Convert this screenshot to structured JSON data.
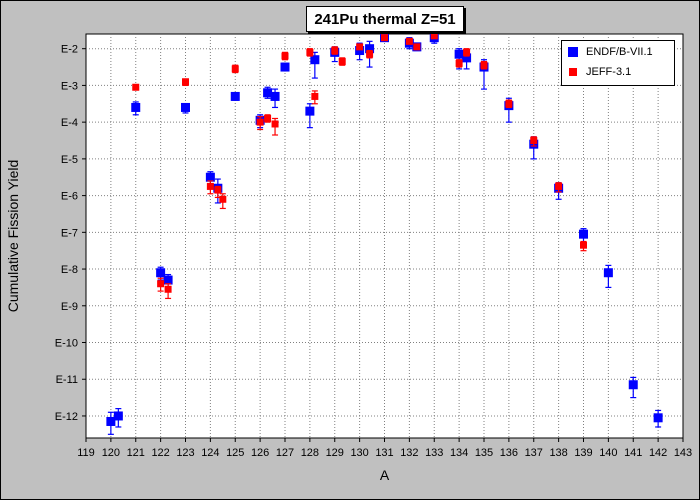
{
  "chart_data": {
    "type": "scatter",
    "title": "241Pu thermal Z=51",
    "xlabel": "A",
    "ylabel": "Cumulative Fission Yield",
    "xlim": [
      119,
      143
    ],
    "ylog": true,
    "ylim_exp": [
      -12.6,
      -1.6
    ],
    "x_ticks": [
      119,
      120,
      121,
      122,
      123,
      124,
      125,
      126,
      127,
      128,
      129,
      130,
      131,
      132,
      133,
      134,
      135,
      136,
      137,
      138,
      139,
      140,
      141,
      142,
      143
    ],
    "y_tick_labels": [
      "E-2",
      "E-3",
      "E-4",
      "E-5",
      "E-6",
      "E-7",
      "E-8",
      "E-9",
      "E-10",
      "E-11",
      "E-12"
    ],
    "y_tick_exps": [
      -2,
      -3,
      -4,
      -5,
      -6,
      -7,
      -8,
      -9,
      -10,
      -11,
      -12
    ],
    "grid": true,
    "legend_position": "top-right",
    "series": [
      {
        "name": "ENDF/B-VII.1",
        "color": "#0000ff",
        "marker": "square-large",
        "points": [
          {
            "x": 120.0,
            "e": -12.15,
            "lo": -12.5,
            "hi": -11.9
          },
          {
            "x": 120.3,
            "e": -12.0,
            "lo": -12.3,
            "hi": -11.8
          },
          {
            "x": 121.0,
            "e": -3.6,
            "lo": -3.8,
            "hi": -3.45
          },
          {
            "x": 122.0,
            "e": -8.1,
            "lo": -8.3,
            "hi": -7.95
          },
          {
            "x": 122.3,
            "e": -8.3,
            "lo": -8.6,
            "hi": -8.15
          },
          {
            "x": 123.0,
            "e": -3.6,
            "lo": -3.75,
            "hi": -3.5
          },
          {
            "x": 124.0,
            "e": -5.5,
            "lo": -5.75,
            "hi": -5.35
          },
          {
            "x": 124.3,
            "e": -5.8,
            "lo": -6.2,
            "hi": -5.55
          },
          {
            "x": 125.0,
            "e": -3.3,
            "lo": -3.4,
            "hi": -3.2
          },
          {
            "x": 126.0,
            "e": -3.95,
            "lo": -4.15,
            "hi": -3.8
          },
          {
            "x": 126.3,
            "e": -3.2,
            "lo": -3.35,
            "hi": -3.05
          },
          {
            "x": 126.6,
            "e": -3.3,
            "lo": -3.6,
            "hi": -3.1
          },
          {
            "x": 127.0,
            "e": -2.5,
            "lo": -2.6,
            "hi": -2.4
          },
          {
            "x": 128.0,
            "e": -3.7,
            "lo": -4.15,
            "hi": -3.5
          },
          {
            "x": 128.2,
            "e": -2.3,
            "lo": -2.8,
            "hi": -2.1
          },
          {
            "x": 129.0,
            "e": -2.1,
            "lo": -2.35,
            "hi": -1.95
          },
          {
            "x": 130.0,
            "e": -2.05,
            "lo": -2.3,
            "hi": -1.85
          },
          {
            "x": 130.4,
            "e": -2.0,
            "lo": -2.5,
            "hi": -1.8
          },
          {
            "x": 131.0,
            "e": -1.7,
            "lo": -1.8,
            "hi": -1.6
          },
          {
            "x": 132.0,
            "e": -1.85,
            "lo": -2.0,
            "hi": -1.7
          },
          {
            "x": 132.3,
            "e": -1.95,
            "lo": -2.05,
            "hi": -1.85
          },
          {
            "x": 133.0,
            "e": -1.7,
            "lo": -1.85,
            "hi": -1.6
          },
          {
            "x": 134.0,
            "e": -2.15,
            "lo": -2.55,
            "hi": -2.0
          },
          {
            "x": 134.3,
            "e": -2.25,
            "lo": -2.55,
            "hi": -2.05
          },
          {
            "x": 135.0,
            "e": -2.5,
            "lo": -3.1,
            "hi": -2.3
          },
          {
            "x": 136.0,
            "e": -3.55,
            "lo": -4.0,
            "hi": -3.35
          },
          {
            "x": 137.0,
            "e": -4.6,
            "lo": -5.0,
            "hi": -4.4
          },
          {
            "x": 138.0,
            "e": -5.8,
            "lo": -6.1,
            "hi": -5.65
          },
          {
            "x": 139.0,
            "e": -7.05,
            "lo": -7.4,
            "hi": -6.9
          },
          {
            "x": 140.0,
            "e": -8.1,
            "lo": -8.5,
            "hi": -7.9
          },
          {
            "x": 141.0,
            "e": -11.15,
            "lo": -11.5,
            "hi": -10.95
          },
          {
            "x": 142.0,
            "e": -12.05,
            "lo": -12.3,
            "hi": -11.85
          }
        ]
      },
      {
        "name": "JEFF-3.1",
        "color": "#ff0000",
        "marker": "square-small",
        "points": [
          {
            "x": 121.0,
            "e": -3.05,
            "lo": -3.1,
            "hi": -3.0
          },
          {
            "x": 122.0,
            "e": -8.4,
            "lo": -8.6,
            "hi": -8.25
          },
          {
            "x": 122.3,
            "e": -8.55,
            "lo": -8.8,
            "hi": -8.4
          },
          {
            "x": 123.0,
            "e": -2.9,
            "lo": -3.0,
            "hi": -2.85
          },
          {
            "x": 124.0,
            "e": -5.75,
            "lo": -5.95,
            "hi": -5.6
          },
          {
            "x": 124.3,
            "e": -5.85,
            "lo": -6.05,
            "hi": -5.75
          },
          {
            "x": 124.5,
            "e": -6.1,
            "lo": -6.35,
            "hi": -5.95
          },
          {
            "x": 125.0,
            "e": -2.55,
            "lo": -2.65,
            "hi": -2.45
          },
          {
            "x": 126.0,
            "e": -4.0,
            "lo": -4.2,
            "hi": -3.85
          },
          {
            "x": 126.3,
            "e": -3.9,
            "lo": -4.0,
            "hi": -3.8
          },
          {
            "x": 126.6,
            "e": -4.05,
            "lo": -4.35,
            "hi": -3.9
          },
          {
            "x": 127.0,
            "e": -2.2,
            "lo": -2.3,
            "hi": -2.1
          },
          {
            "x": 128.0,
            "e": -2.1,
            "lo": -2.2,
            "hi": -2.0
          },
          {
            "x": 128.2,
            "e": -3.3,
            "lo": -3.5,
            "hi": -3.15
          },
          {
            "x": 129.0,
            "e": -2.05,
            "lo": -2.15,
            "hi": -1.95
          },
          {
            "x": 129.3,
            "e": -2.35,
            "lo": -2.45,
            "hi": -2.25
          },
          {
            "x": 130.0,
            "e": -1.95,
            "lo": -2.0,
            "hi": -1.9
          },
          {
            "x": 130.4,
            "e": -2.15,
            "lo": -2.25,
            "hi": -2.05
          },
          {
            "x": 131.0,
            "e": -1.7,
            "lo": -1.75,
            "hi": -1.65
          },
          {
            "x": 132.0,
            "e": -1.8,
            "lo": -1.85,
            "hi": -1.75
          },
          {
            "x": 132.3,
            "e": -1.95,
            "lo": -2.0,
            "hi": -1.9
          },
          {
            "x": 133.0,
            "e": -1.65,
            "lo": -1.7,
            "hi": -1.6
          },
          {
            "x": 134.0,
            "e": -2.4,
            "lo": -2.5,
            "hi": -2.3
          },
          {
            "x": 134.3,
            "e": -2.1,
            "lo": -2.2,
            "hi": -2.0
          },
          {
            "x": 135.0,
            "e": -2.45,
            "lo": -2.55,
            "hi": -2.35
          },
          {
            "x": 136.0,
            "e": -3.5,
            "lo": -3.6,
            "hi": -3.4
          },
          {
            "x": 137.0,
            "e": -4.5,
            "lo": -4.65,
            "hi": -4.4
          },
          {
            "x": 138.0,
            "e": -5.75,
            "lo": -5.9,
            "hi": -5.65
          },
          {
            "x": 139.0,
            "e": -7.35,
            "lo": -7.5,
            "hi": -7.25
          }
        ]
      }
    ]
  }
}
